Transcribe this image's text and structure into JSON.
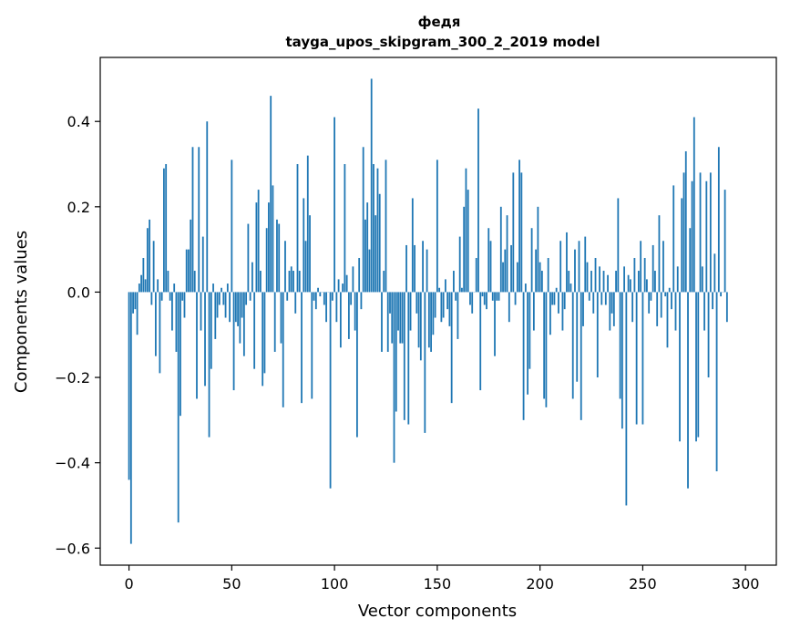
{
  "chart_data": {
    "type": "bar",
    "title": "федя",
    "subtitle": "tayga_upos_skipgram_300_2_2019 model",
    "xlabel": "Vector components",
    "ylabel": "Components values",
    "xlim": [
      -14,
      315
    ],
    "ylim": [
      -0.64,
      0.55
    ],
    "x_ticks": [
      0,
      50,
      100,
      150,
      200,
      250,
      300
    ],
    "x_tick_labels": [
      "0",
      "50",
      "100",
      "150",
      "200",
      "250",
      "300"
    ],
    "y_ticks": [
      -0.6,
      -0.4,
      -0.2,
      0.0,
      0.2,
      0.4
    ],
    "y_tick_labels": [
      "−0.6",
      "−0.4",
      "−0.2",
      "0.0",
      "0.2",
      "0.4"
    ],
    "bar_color": "#1f77b4",
    "values": [
      -0.44,
      -0.59,
      -0.05,
      -0.04,
      -0.1,
      0.02,
      0.04,
      0.08,
      0.03,
      0.15,
      0.17,
      -0.03,
      0.12,
      -0.15,
      0.03,
      -0.19,
      -0.02,
      0.29,
      0.3,
      0.05,
      -0.02,
      -0.09,
      0.02,
      -0.14,
      -0.54,
      -0.29,
      -0.02,
      -0.06,
      0.1,
      0.1,
      0.17,
      0.34,
      0.05,
      -0.25,
      0.34,
      -0.09,
      0.13,
      -0.22,
      0.4,
      -0.34,
      -0.18,
      0.02,
      -0.11,
      -0.06,
      -0.03,
      0.01,
      -0.03,
      -0.06,
      0.02,
      -0.07,
      0.31,
      -0.23,
      -0.07,
      -0.08,
      -0.12,
      -0.06,
      -0.15,
      -0.03,
      0.16,
      -0.02,
      0.07,
      -0.18,
      0.21,
      0.24,
      0.05,
      -0.22,
      -0.19,
      0.15,
      0.21,
      0.46,
      0.25,
      -0.14,
      0.17,
      0.16,
      -0.12,
      -0.27,
      0.12,
      -0.02,
      0.05,
      0.06,
      0.05,
      -0.05,
      0.3,
      0.05,
      -0.26,
      0.22,
      0.12,
      0.32,
      0.18,
      -0.25,
      -0.02,
      -0.04,
      0.01,
      -0.01,
      0.0,
      -0.03,
      -0.07,
      0.0,
      -0.46,
      -0.02,
      0.41,
      -0.07,
      0.03,
      -0.13,
      0.02,
      0.3,
      0.04,
      -0.11,
      -0.03,
      0.06,
      -0.09,
      -0.34,
      0.08,
      -0.04,
      0.34,
      0.17,
      0.21,
      0.1,
      0.5,
      0.3,
      0.18,
      0.29,
      0.23,
      -0.14,
      0.05,
      0.31,
      -0.14,
      -0.05,
      -0.12,
      -0.4,
      -0.28,
      -0.09,
      -0.12,
      -0.12,
      -0.3,
      0.11,
      -0.31,
      -0.09,
      0.22,
      0.11,
      -0.05,
      -0.13,
      -0.16,
      0.12,
      -0.33,
      0.1,
      -0.13,
      -0.14,
      -0.1,
      -0.06,
      0.31,
      0.01,
      -0.07,
      -0.06,
      0.03,
      -0.04,
      -0.08,
      -0.26,
      0.05,
      -0.02,
      -0.11,
      0.13,
      0.01,
      0.2,
      0.29,
      0.24,
      -0.03,
      -0.05,
      0.0,
      0.08,
      0.43,
      -0.23,
      -0.01,
      -0.03,
      -0.04,
      0.15,
      0.12,
      -0.02,
      -0.15,
      -0.02,
      -0.02,
      0.2,
      0.07,
      0.1,
      0.18,
      -0.07,
      0.11,
      0.28,
      -0.03,
      0.07,
      0.31,
      0.28,
      -0.3,
      0.02,
      -0.24,
      -0.18,
      0.15,
      -0.09,
      0.1,
      0.2,
      0.07,
      0.05,
      -0.25,
      -0.27,
      0.08,
      -0.1,
      -0.03,
      -0.03,
      0.01,
      -0.05,
      0.12,
      -0.09,
      -0.04,
      0.14,
      0.05,
      0.02,
      -0.25,
      0.1,
      -0.21,
      0.12,
      -0.3,
      -0.08,
      0.13,
      0.07,
      -0.02,
      0.05,
      -0.05,
      0.08,
      -0.2,
      0.06,
      -0.03,
      0.05,
      -0.03,
      0.04,
      -0.09,
      -0.05,
      -0.08,
      0.05,
      0.22,
      -0.25,
      -0.32,
      0.06,
      -0.5,
      0.04,
      0.03,
      -0.07,
      0.08,
      -0.31,
      0.05,
      0.12,
      -0.31,
      0.08,
      0.03,
      -0.05,
      -0.02,
      0.11,
      0.05,
      -0.08,
      0.18,
      -0.06,
      0.12,
      -0.01,
      -0.13,
      0.01,
      -0.04,
      0.25,
      -0.09,
      0.06,
      -0.35,
      0.22,
      0.28,
      0.33,
      -0.46,
      0.15,
      0.26,
      0.41,
      -0.35,
      -0.34,
      0.28,
      0.06,
      -0.09,
      0.26,
      -0.2,
      0.28,
      -0.04,
      0.09,
      -0.42,
      0.34,
      -0.01,
      0.0,
      0.24,
      -0.07
    ]
  }
}
